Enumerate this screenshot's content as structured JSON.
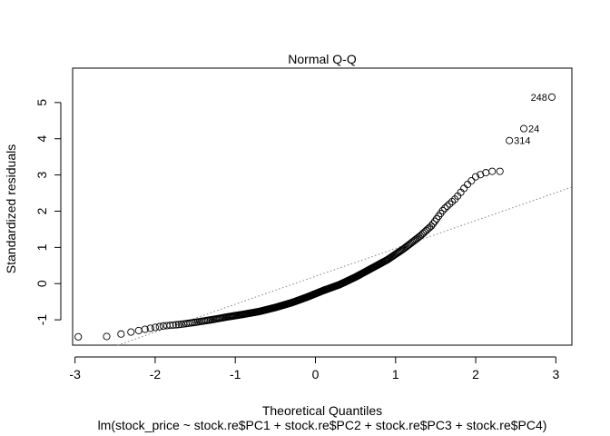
{
  "chart_data": {
    "type": "scatter",
    "title": "Normal Q-Q",
    "xlabel": "Theoretical Quantiles",
    "ylabel": "Standardized residuals",
    "subtitle": "lm(stock_price ~ stock.re$PC1 + stock.re$PC2 + stock.re$PC3 + stock.re$PC4)",
    "xlim": [
      -3.03,
      3.2
    ],
    "ylim": [
      -1.7,
      5.95
    ],
    "x_ticks": [
      -3,
      -2,
      -1,
      0,
      1,
      2,
      3
    ],
    "y_ticks": [
      -1,
      0,
      1,
      2,
      3,
      4,
      5
    ],
    "x_tick_labels": [
      "-3",
      "-2",
      "-1",
      "0",
      "1",
      "2",
      "3"
    ],
    "y_tick_labels": [
      "-1",
      "0",
      "1",
      "2",
      "3",
      "4",
      "5"
    ],
    "grid": false,
    "n_points": 330,
    "reference_line": {
      "style": "dotted",
      "color": "#808080",
      "intercept": 0.2,
      "slope": 0.77
    },
    "anchor_points": [
      {
        "x": -2.95,
        "y": -1.47
      },
      {
        "x": -2.6,
        "y": -1.46
      },
      {
        "x": -2.42,
        "y": -1.39
      },
      {
        "x": -2.1,
        "y": -1.25
      },
      {
        "x": -1.9,
        "y": -1.17
      },
      {
        "x": -1.7,
        "y": -1.13
      },
      {
        "x": -1.5,
        "y": -1.07
      },
      {
        "x": -1.3,
        "y": -1.0
      },
      {
        "x": -1.1,
        "y": -0.92
      },
      {
        "x": -0.9,
        "y": -0.85
      },
      {
        "x": -0.7,
        "y": -0.77
      },
      {
        "x": -0.5,
        "y": -0.66
      },
      {
        "x": -0.3,
        "y": -0.53
      },
      {
        "x": -0.1,
        "y": -0.37
      },
      {
        "x": 0.1,
        "y": -0.19
      },
      {
        "x": 0.3,
        "y": -0.03
      },
      {
        "x": 0.5,
        "y": 0.18
      },
      {
        "x": 0.7,
        "y": 0.42
      },
      {
        "x": 0.9,
        "y": 0.66
      },
      {
        "x": 1.1,
        "y": 0.96
      },
      {
        "x": 1.3,
        "y": 1.3
      },
      {
        "x": 1.45,
        "y": 1.6
      },
      {
        "x": 1.6,
        "y": 2.05
      },
      {
        "x": 1.75,
        "y": 2.35
      },
      {
        "x": 1.88,
        "y": 2.7
      },
      {
        "x": 2.0,
        "y": 2.95
      },
      {
        "x": 2.1,
        "y": 3.05
      },
      {
        "x": 2.2,
        "y": 3.1
      }
    ],
    "labeled_points": [
      {
        "x": 2.42,
        "y": 3.95,
        "label": "314",
        "side": "right"
      },
      {
        "x": 2.6,
        "y": 4.28,
        "label": "24",
        "side": "right"
      },
      {
        "x": 2.95,
        "y": 5.15,
        "label": "248",
        "side": "left"
      }
    ]
  }
}
